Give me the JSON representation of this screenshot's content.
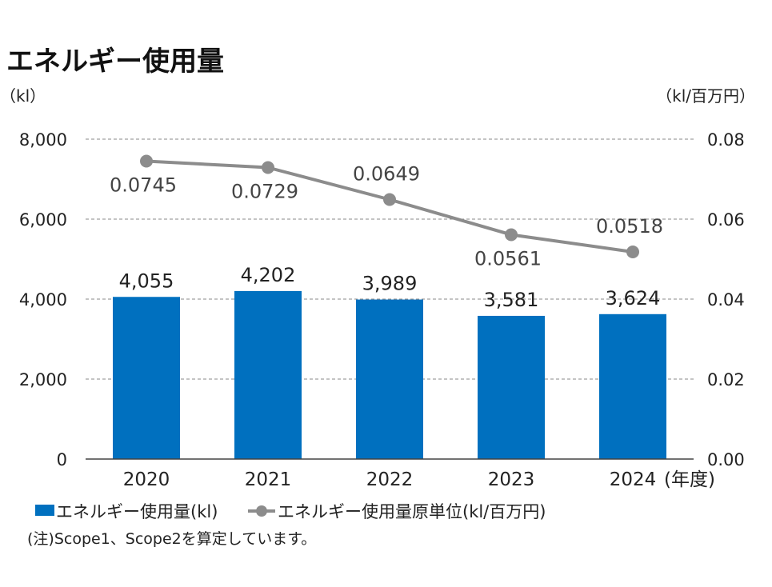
{
  "chart_data": {
    "type": "bar",
    "title": "エネルギー使用量",
    "categories": [
      "2020",
      "2021",
      "2022",
      "2023",
      "2024"
    ],
    "x_unit_label": "(年度)",
    "left_axis": {
      "unit_label": "（kl）",
      "range": [
        0,
        8000
      ],
      "ticks": [
        "0",
        "2,000",
        "4,000",
        "6,000",
        "8,000"
      ]
    },
    "right_axis": {
      "unit_label": "（kl/百万円）",
      "range": [
        0,
        0.08
      ],
      "ticks": [
        "0.00",
        "0.02",
        "0.04",
        "0.06",
        "0.08"
      ]
    },
    "series": [
      {
        "name": "エネルギー使用量(kl)",
        "type": "bar",
        "axis": "left",
        "color": "#0070bf",
        "values": [
          4055,
          4202,
          3989,
          3581,
          3624
        ],
        "labels": [
          "4,055",
          "4,202",
          "3,989",
          "3,581",
          "3,624"
        ]
      },
      {
        "name": "エネルギー使用量原単位(kl/百万円)",
        "type": "line",
        "axis": "right",
        "color": "#8c8c8c",
        "values": [
          0.0745,
          0.0729,
          0.0649,
          0.0561,
          0.0518
        ],
        "labels": [
          "0.0745",
          "0.0729",
          "0.0649",
          "0.0561",
          "0.0518"
        ]
      }
    ],
    "grid": "dashed horizontal",
    "legend_position": "bottom-left",
    "note": "(注)Scope1、Scope2を算定しています。"
  }
}
